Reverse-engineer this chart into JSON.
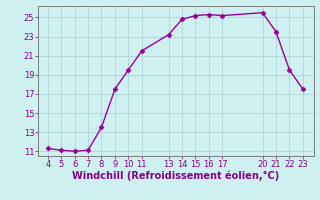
{
  "x": [
    4,
    5,
    6,
    7,
    8,
    9,
    10,
    11,
    13,
    14,
    15,
    16,
    17,
    20,
    21,
    22,
    23
  ],
  "y": [
    11.3,
    11.1,
    11.0,
    11.1,
    13.5,
    17.5,
    19.5,
    21.5,
    23.2,
    24.8,
    25.2,
    25.3,
    25.2,
    25.5,
    23.5,
    19.5,
    17.5
  ],
  "line_color": "#990099",
  "marker": "D",
  "marker_size": 2.5,
  "bg_color": "#cff0f0",
  "grid_color": "#aacece",
  "axis_color": "#880088",
  "xlabel": "Windchill (Refroidissement éolien,°C)",
  "xlabel_fontsize": 7,
  "tick_fontsize": 6,
  "ylim": [
    10.5,
    26.2
  ],
  "yticks": [
    11,
    13,
    15,
    17,
    19,
    21,
    23,
    25
  ],
  "xticks": [
    4,
    5,
    6,
    7,
    8,
    9,
    10,
    11,
    13,
    14,
    15,
    16,
    17,
    20,
    21,
    22,
    23
  ],
  "xlim": [
    3.3,
    23.8
  ],
  "spine_color": "#7a7a7a",
  "line_width": 1.0
}
